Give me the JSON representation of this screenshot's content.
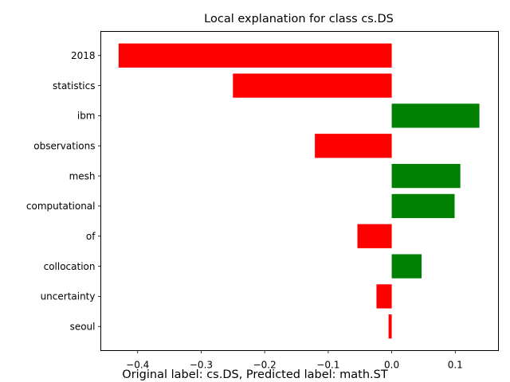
{
  "chart_data": {
    "type": "bar",
    "orientation": "horizontal",
    "title": "Local explanation for class cs.DS",
    "caption": "Original label: cs.DS, Predicted label: math.ST",
    "categories": [
      "2018",
      "statistics",
      "ibm",
      "observations",
      "mesh",
      "computational",
      "of",
      "collocation",
      "uncertainty",
      "seoul"
    ],
    "values": [
      -0.43,
      -0.25,
      0.138,
      -0.121,
      0.108,
      0.099,
      -0.054,
      0.047,
      -0.024,
      -0.005
    ],
    "xlim": [
      -0.458,
      0.168
    ],
    "xticks": [
      -0.4,
      -0.3,
      -0.2,
      -0.1,
      0.0,
      0.1
    ],
    "xtick_labels": [
      "−0.4",
      "−0.3",
      "−0.2",
      "−0.1",
      "0.0",
      "0.1"
    ],
    "colors": {
      "positive": "#008000",
      "negative": "#ff0000"
    },
    "grid": false
  }
}
